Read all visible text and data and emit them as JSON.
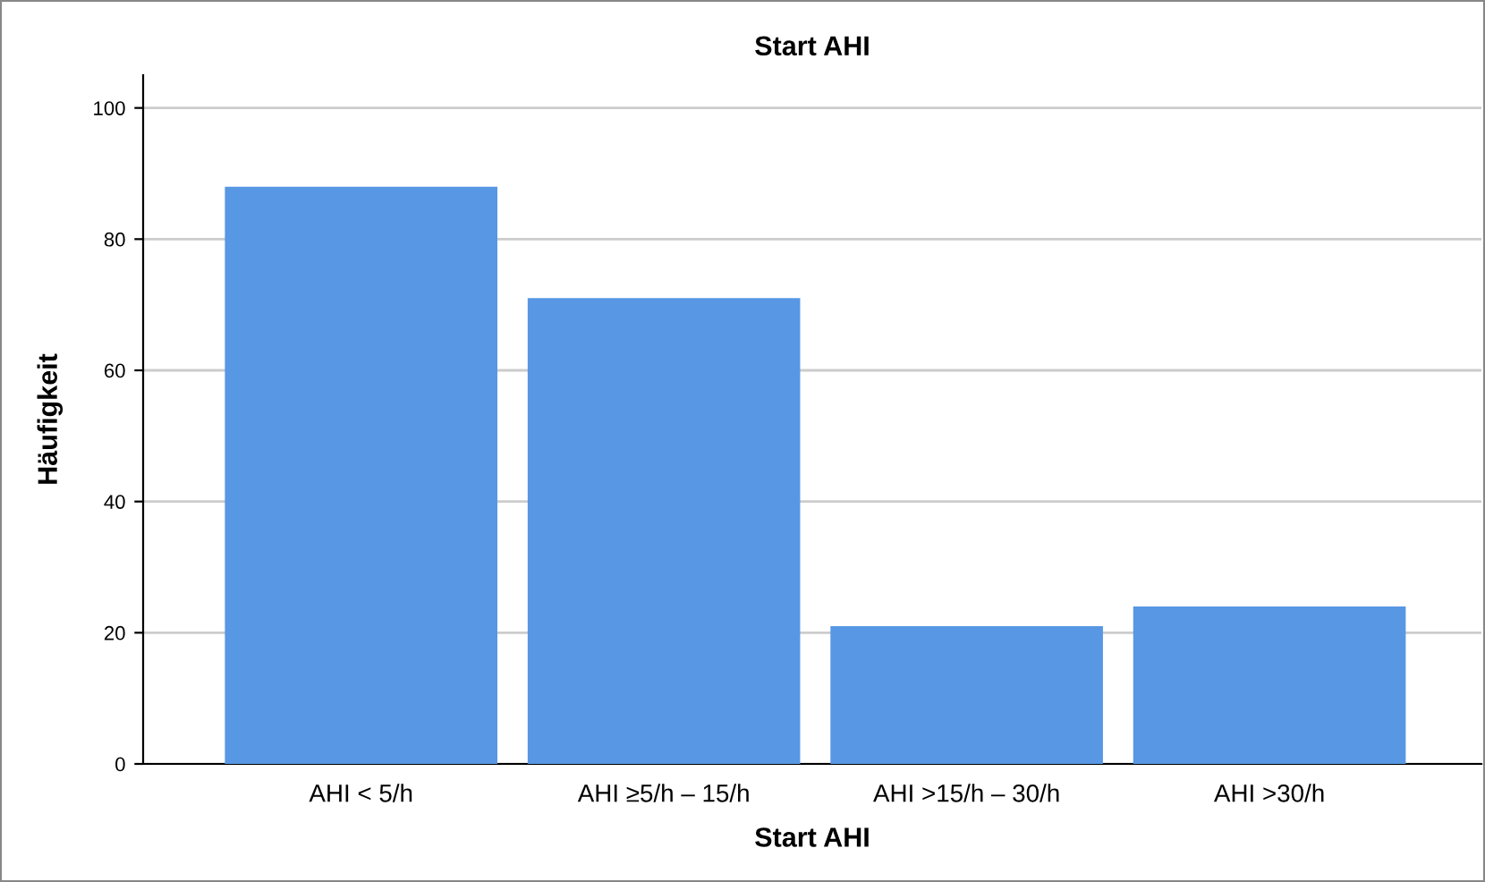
{
  "chart_data": {
    "type": "bar",
    "title": "Start AHI",
    "xlabel": "Start AHI",
    "ylabel": "Häufigkeit",
    "categories": [
      "AHI < 5/h",
      "AHI ≥5/h – 15/h",
      "AHI >15/h – 30/h",
      "AHI >30/h"
    ],
    "values": [
      88,
      71,
      21,
      24
    ],
    "color": "#5797e4",
    "ylim": [
      0,
      105
    ],
    "yticks": [
      0,
      20,
      40,
      60,
      80,
      100
    ],
    "grid": "y",
    "legend": false
  }
}
